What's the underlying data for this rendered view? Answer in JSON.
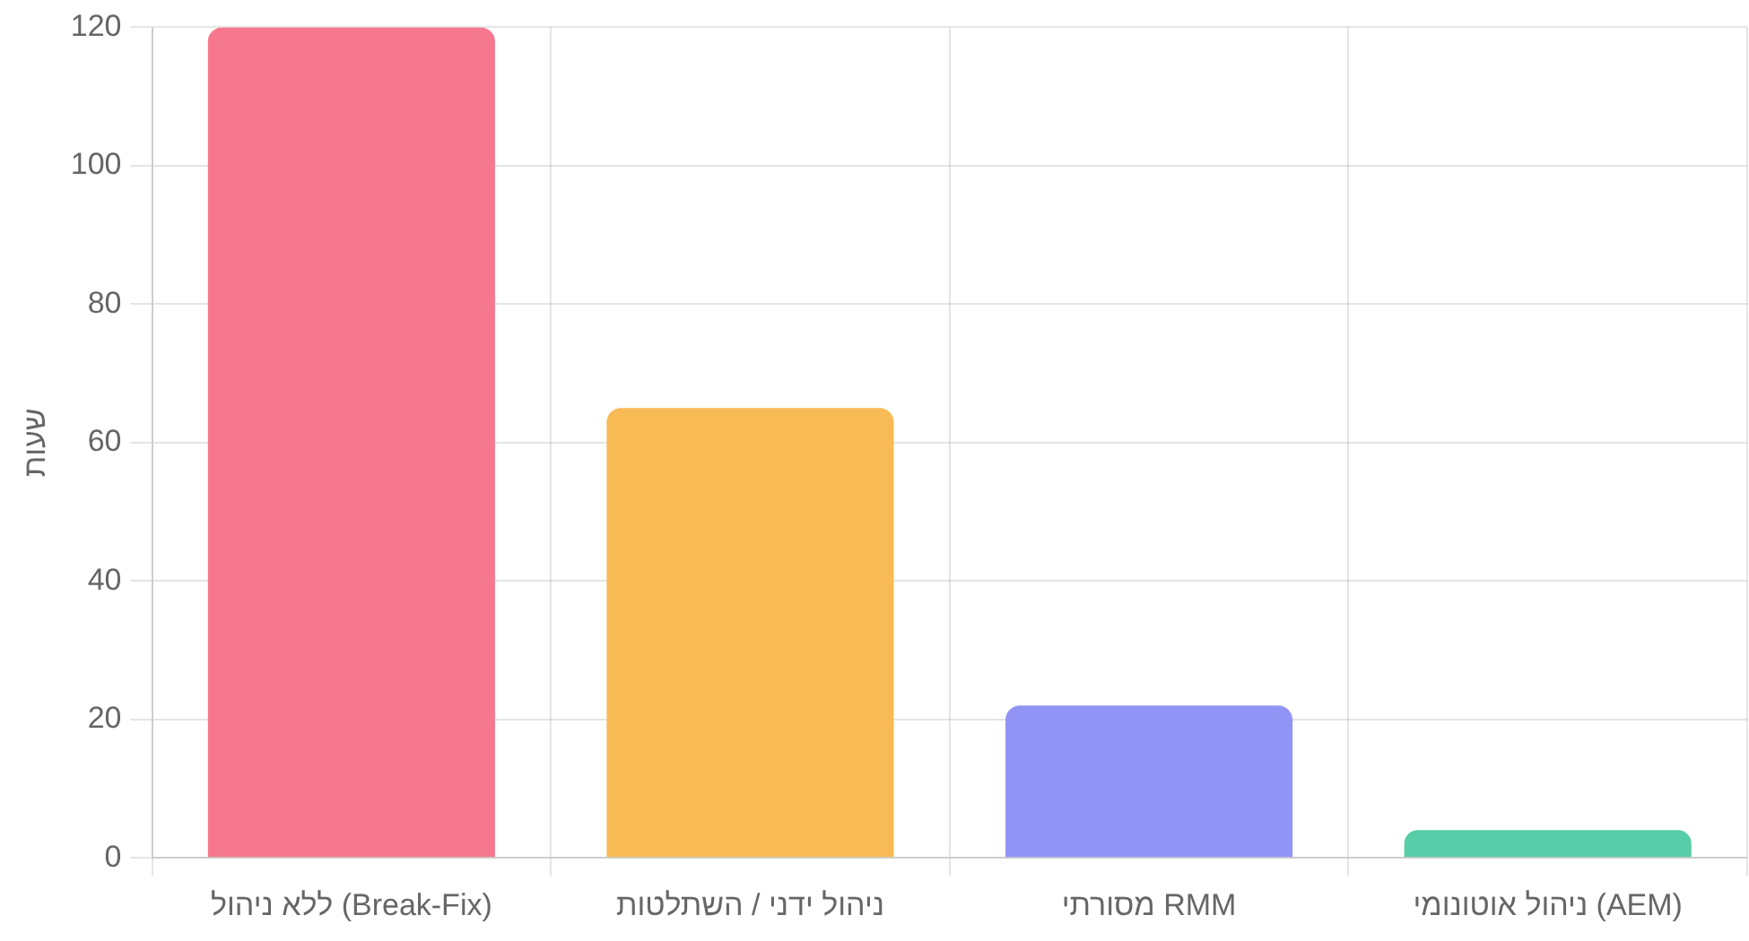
{
  "chart_data": {
    "type": "bar",
    "ylabel": "שעות",
    "categories": [
      "ללא ניהול (Break-Fix)",
      "ניהול ידני / השתלטות",
      "מסורתי RMM",
      "ניהול אוטונומי (AEM)"
    ],
    "values": [
      120,
      65,
      22,
      4
    ],
    "colors": [
      "#f6788e",
      "#f7ba55",
      "#9294f5",
      "#57cea7"
    ],
    "ylim": [
      0,
      120
    ],
    "yticks": [
      0,
      20,
      40,
      60,
      80,
      100,
      120
    ],
    "grid": true
  }
}
